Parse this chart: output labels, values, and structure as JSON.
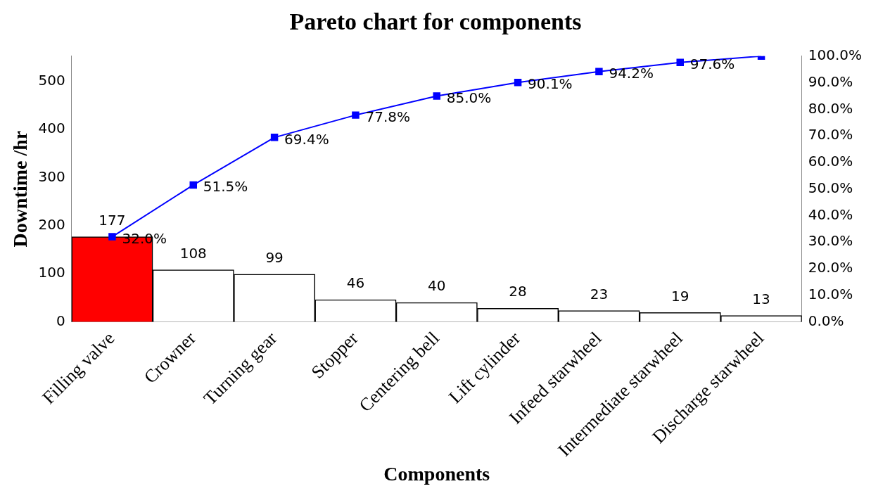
{
  "chart_data": {
    "type": "bar",
    "title": "Pareto chart for components",
    "xlabel": "Components",
    "ylabel": "Downtime /hr",
    "categories": [
      "Filling valve",
      "Crowner",
      "Turning gear",
      "Stopper",
      "Centering bell",
      "Lift cylinder",
      "Infeed starwheel",
      "Intermediate starwheel",
      "Discharge starwheel"
    ],
    "series": [
      {
        "colors": [
          "#ff0000",
          "#ffffff",
          "#ffffff",
          "#ffffff",
          "#ffffff",
          "#ffffff",
          "#ffffff",
          "#ffffff",
          "#ffffff"
        ],
        "values": [
          177,
          108,
          99,
          46,
          40,
          28,
          23,
          19,
          13
        ],
        "data_labels": true
      },
      {
        "type": "line",
        "axis": "y2",
        "color": "#0000ff",
        "marker": "square",
        "values": [
          32.0,
          51.5,
          69.4,
          77.8,
          85.0,
          90.1,
          94.2,
          97.6,
          100.0
        ],
        "value_labels": [
          "32.0%",
          "51.5%",
          "69.4%",
          "77.8%",
          "85.0%",
          "90.1%",
          "94.2%",
          "97.6%",
          null
        ]
      }
    ],
    "ylim": [
      0,
      553
    ],
    "yticks": [
      0,
      100,
      200,
      300,
      400,
      500
    ],
    "y2lim": [
      0,
      100
    ],
    "y2ticks": [
      {
        "value": 0,
        "label": "0.0%"
      },
      {
        "value": 10,
        "label": "10.0%"
      },
      {
        "value": 20,
        "label": "20.0%"
      },
      {
        "value": 30,
        "label": "30.0%"
      },
      {
        "value": 40,
        "label": "40.0%"
      },
      {
        "value": 50,
        "label": "50.0%"
      },
      {
        "value": 60,
        "label": "60.0%"
      },
      {
        "value": 70,
        "label": "70.0%"
      },
      {
        "value": 80,
        "label": "80.0%"
      },
      {
        "value": 90,
        "label": "90.0%"
      },
      {
        "value": 100,
        "label": "100.0%"
      }
    ],
    "grid": false,
    "legend": false
  }
}
